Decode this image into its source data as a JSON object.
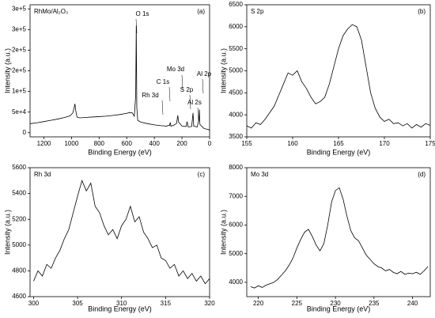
{
  "chart_data": [
    {
      "type": "line",
      "title": "RhMo/Al₂O₃",
      "panel_label": "(a)",
      "x_label": "Binding Energy (eV)",
      "y_label": "Intensity (a.u.)",
      "annotations": [
        "O 1s",
        "Mo 3d",
        "C 1s",
        "Rh 3d",
        "S 2p",
        "Al 2s",
        "Al 2p"
      ],
      "color": "#000000",
      "x": [
        1300,
        1250,
        1200,
        1150,
        1100,
        1050,
        1010,
        990,
        980,
        975,
        970,
        960,
        940,
        900,
        850,
        800,
        750,
        700,
        650,
        600,
        580,
        560,
        545,
        535,
        531,
        527,
        520,
        500,
        450,
        400,
        350,
        310,
        300,
        290,
        285,
        280,
        260,
        240,
        230,
        225,
        200,
        170,
        163,
        155,
        130,
        120,
        115,
        90,
        78,
        74,
        70,
        40,
        10,
        0
      ],
      "values": [
        22000,
        24000,
        27000,
        30000,
        33000,
        37000,
        41000,
        48000,
        62000,
        70000,
        55000,
        38000,
        36000,
        37000,
        38000,
        39000,
        40000,
        42000,
        44000,
        47000,
        49000,
        48000,
        40000,
        90000,
        260000,
        60000,
        30000,
        26000,
        22000,
        19000,
        17000,
        16000,
        18000,
        17000,
        25000,
        16000,
        18000,
        22000,
        42000,
        26000,
        16000,
        15000,
        27000,
        14000,
        15000,
        48000,
        16000,
        14000,
        30000,
        56000,
        20000,
        10000,
        8000,
        6000
      ],
      "xlim": [
        1300,
        0
      ],
      "xticks": [
        1200,
        1000,
        800,
        600,
        400,
        200,
        0
      ],
      "ylim": [
        -10000,
        310000
      ],
      "yticks": [
        0,
        {
          "value": 50000,
          "label": "5e+4"
        },
        {
          "value": 100000,
          "label": "1e+5"
        },
        {
          "value": 150000,
          "label": "2e+5"
        },
        {
          "value": 200000,
          "label": "2e+5"
        },
        {
          "value": 250000,
          "label": "3e+5"
        },
        {
          "value": 300000,
          "label": "3e+5"
        }
      ]
    },
    {
      "type": "line",
      "title": "S 2p",
      "panel_label": "(b)",
      "x_label": "Binding Energy (eV)",
      "y_label": "Intensity (a.u.)",
      "color": "#000000",
      "x": [
        155,
        155.5,
        156,
        156.5,
        157,
        157.5,
        158,
        158.5,
        159,
        159.5,
        160,
        160.5,
        161,
        161.5,
        162,
        162.5,
        163,
        163.5,
        164,
        164.5,
        165,
        165.5,
        166,
        166.5,
        167,
        167.5,
        168,
        168.5,
        169,
        169.5,
        170,
        170.5,
        171,
        171.5,
        172,
        172.5,
        173,
        173.5,
        174,
        174.5,
        175
      ],
      "values": [
        3750,
        3700,
        3820,
        3780,
        3900,
        4050,
        4200,
        4450,
        4700,
        4950,
        4900,
        5000,
        4750,
        4600,
        4400,
        4250,
        4300,
        4400,
        4700,
        5100,
        5500,
        5800,
        5950,
        6050,
        6000,
        5700,
        5100,
        4500,
        4150,
        3950,
        3850,
        3900,
        3800,
        3820,
        3750,
        3800,
        3700,
        3780,
        3720,
        3800,
        3760
      ],
      "xlim": [
        155,
        175
      ],
      "xticks": [
        155,
        160,
        165,
        170,
        175
      ],
      "ylim": [
        3500,
        6500
      ],
      "yticks": [
        3500,
        4000,
        4500,
        5000,
        5500,
        6000,
        6500
      ]
    },
    {
      "type": "line",
      "title": "Rh 3d",
      "panel_label": "(c)",
      "x_label": "Binding Energy (eV)",
      "y_label": "Intensity (a.u.)",
      "color": "#000000",
      "x": [
        300,
        300.5,
        301,
        301.5,
        302,
        302.5,
        303,
        303.5,
        304,
        304.5,
        305,
        305.5,
        306,
        306.5,
        307,
        307.5,
        308,
        308.5,
        309,
        309.5,
        310,
        310.5,
        311,
        311.5,
        312,
        312.5,
        313,
        313.5,
        314,
        314.5,
        315,
        315.5,
        316,
        316.5,
        317,
        317.5,
        318,
        318.5,
        319,
        319.5,
        320
      ],
      "values": [
        4720,
        4800,
        4760,
        4850,
        4820,
        4900,
        4960,
        5050,
        5120,
        5250,
        5380,
        5500,
        5420,
        5480,
        5300,
        5250,
        5150,
        5080,
        5120,
        5050,
        5150,
        5200,
        5300,
        5180,
        5220,
        5100,
        5050,
        4980,
        5000,
        4900,
        4880,
        4820,
        4850,
        4760,
        4800,
        4740,
        4780,
        4720,
        4760,
        4700,
        4740
      ],
      "xlim": [
        299.6,
        320
      ],
      "xticks": [
        300,
        305,
        310,
        315,
        320
      ],
      "ylim": [
        4600,
        5600
      ],
      "yticks": [
        4600,
        4800,
        5000,
        5200,
        5400,
        5600
      ]
    },
    {
      "type": "line",
      "title": "Mo 3d",
      "panel_label": "(d)",
      "x_label": "Binding Energy (eV)",
      "y_label": "Intensity (a.u.)",
      "color": "#000000",
      "x": [
        219,
        219.5,
        220,
        220.5,
        221,
        221.5,
        222,
        222.5,
        223,
        223.5,
        224,
        224.5,
        225,
        225.5,
        226,
        226.5,
        227,
        227.5,
        228,
        228.5,
        229,
        229.5,
        230,
        230.5,
        231,
        231.5,
        232,
        232.5,
        233,
        233.5,
        234,
        234.5,
        235,
        235.5,
        236,
        236.5,
        237,
        237.5,
        238,
        238.5,
        239,
        239.5,
        240,
        240.5,
        241,
        241.5,
        242
      ],
      "values": [
        3850,
        3800,
        3880,
        3820,
        3900,
        3950,
        4000,
        4100,
        4250,
        4400,
        4600,
        4850,
        5200,
        5500,
        5750,
        5850,
        5600,
        5300,
        5100,
        5350,
        6000,
        6800,
        7200,
        7300,
        6900,
        6300,
        5800,
        5550,
        5450,
        5200,
        4950,
        4800,
        4650,
        4550,
        4500,
        4400,
        4450,
        4350,
        4300,
        4380,
        4280,
        4320,
        4300,
        4350,
        4280,
        4400,
        4550
      ],
      "xlim": [
        218.5,
        242.3
      ],
      "xticks": [
        220,
        225,
        230,
        235,
        240
      ],
      "ylim": [
        3500,
        8000
      ],
      "yticks": [
        4000,
        5000,
        6000,
        7000,
        8000
      ]
    }
  ]
}
